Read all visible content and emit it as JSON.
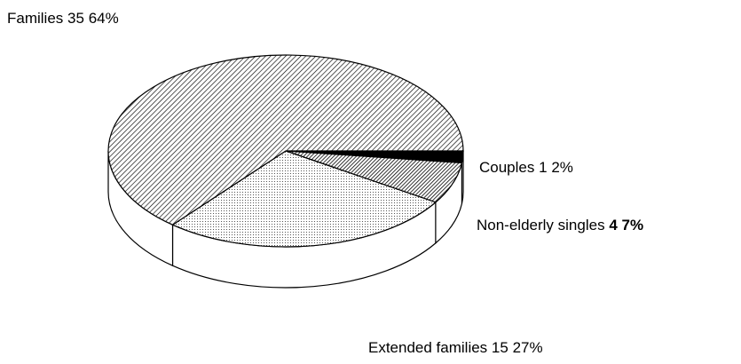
{
  "chart_data": {
    "type": "pie",
    "categories": [
      "Couples",
      "Non-elderly singles",
      "Extended families",
      "Families"
    ],
    "counts": [
      1,
      4,
      15,
      35
    ],
    "values": [
      2,
      7,
      27,
      64
    ],
    "value_labels": [
      "2%",
      "7%",
      "27%",
      "64%"
    ]
  }
}
